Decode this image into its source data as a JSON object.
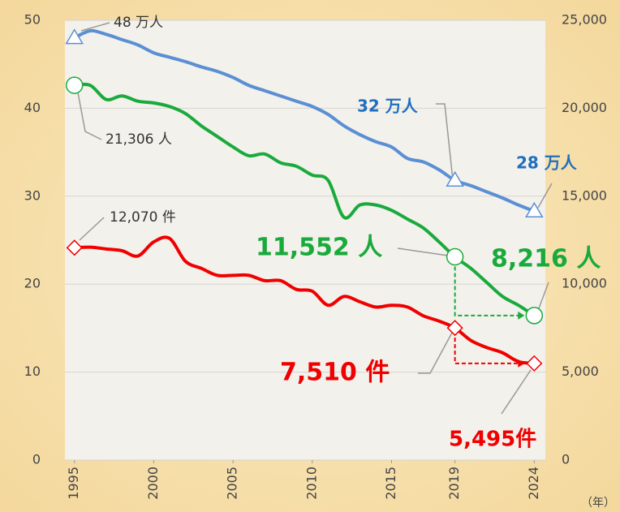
{
  "chart_data": {
    "type": "line",
    "x": [
      1995,
      1996,
      1997,
      1998,
      1999,
      2000,
      2001,
      2002,
      2003,
      2004,
      2005,
      2006,
      2007,
      2008,
      2009,
      2010,
      2011,
      2012,
      2013,
      2014,
      2015,
      2016,
      2017,
      2018,
      2019,
      2020,
      2021,
      2022,
      2023,
      2024
    ],
    "series": [
      {
        "color": "#5b8fd4",
        "values": [
          48.0,
          48.8,
          48.4,
          47.8,
          47.2,
          46.3,
          45.8,
          45.3,
          44.7,
          44.2,
          43.5,
          42.6,
          42.0,
          41.4,
          40.8,
          40.2,
          39.3,
          38.0,
          37.0,
          36.2,
          35.6,
          34.3,
          33.9,
          33.0,
          31.8,
          31.2,
          30.5,
          29.8,
          29.0,
          28.3
        ],
        "value_labels": [
          "48 万人",
          null,
          null,
          null,
          null,
          null,
          null,
          null,
          null,
          null,
          null,
          null,
          null,
          null,
          null,
          null,
          null,
          null,
          null,
          null,
          null,
          null,
          null,
          null,
          "32 万人",
          null,
          null,
          null,
          null,
          "28 万人"
        ]
      },
      {
        "color": "#1aaa3c",
        "axis": "y2",
        "values": [
          21306,
          21300,
          20500,
          20700,
          20400,
          20300,
          20100,
          19700,
          19000,
          18400,
          17800,
          17300,
          17400,
          16900,
          16700,
          16200,
          15900,
          13800,
          14500,
          14500,
          14200,
          13700,
          13200,
          12400,
          11552,
          10900,
          10100,
          9300,
          8800,
          8216
        ],
        "value_labels": [
          "21,306 人",
          null,
          null,
          null,
          null,
          null,
          null,
          null,
          null,
          null,
          null,
          null,
          null,
          null,
          null,
          null,
          null,
          null,
          null,
          null,
          null,
          null,
          null,
          null,
          "11,552 人",
          null,
          null,
          null,
          null,
          "8,216 人"
        ]
      },
      {
        "color": "#f00000",
        "axis": "y2",
        "values": [
          12070,
          12100,
          12000,
          11900,
          11600,
          12400,
          12600,
          11300,
          10900,
          10500,
          10500,
          10500,
          10200,
          10200,
          9700,
          9600,
          8800,
          9300,
          9000,
          8700,
          8800,
          8700,
          8200,
          7900,
          7510,
          6800,
          6400,
          6100,
          5600,
          5495
        ],
        "value_labels": [
          "12,070 件",
          null,
          null,
          null,
          null,
          null,
          null,
          null,
          null,
          null,
          null,
          null,
          null,
          null,
          null,
          null,
          null,
          null,
          null,
          null,
          null,
          null,
          null,
          null,
          "7,510 件",
          null,
          null,
          null,
          null,
          "5,495件"
        ]
      }
    ],
    "xlim": [
      1994.4,
      2024.7
    ],
    "xticks": [
      1995,
      2000,
      2005,
      2010,
      2015,
      2019,
      2024
    ],
    "xlabel": "（年）",
    "ylim": [
      0,
      50
    ],
    "yticks": [
      0,
      10,
      20,
      30,
      40,
      50
    ],
    "y2lim": [
      0,
      25000
    ],
    "y2ticks": [
      0,
      {
        "value": 5000,
        "label": "5,000"
      },
      {
        "value": 10000,
        "label": "10,000"
      },
      {
        "value": 15000,
        "label": "15,000"
      },
      {
        "value": 20000,
        "label": "20,000"
      },
      {
        "value": 25000,
        "label": "25,000"
      }
    ],
    "grid": true
  }
}
